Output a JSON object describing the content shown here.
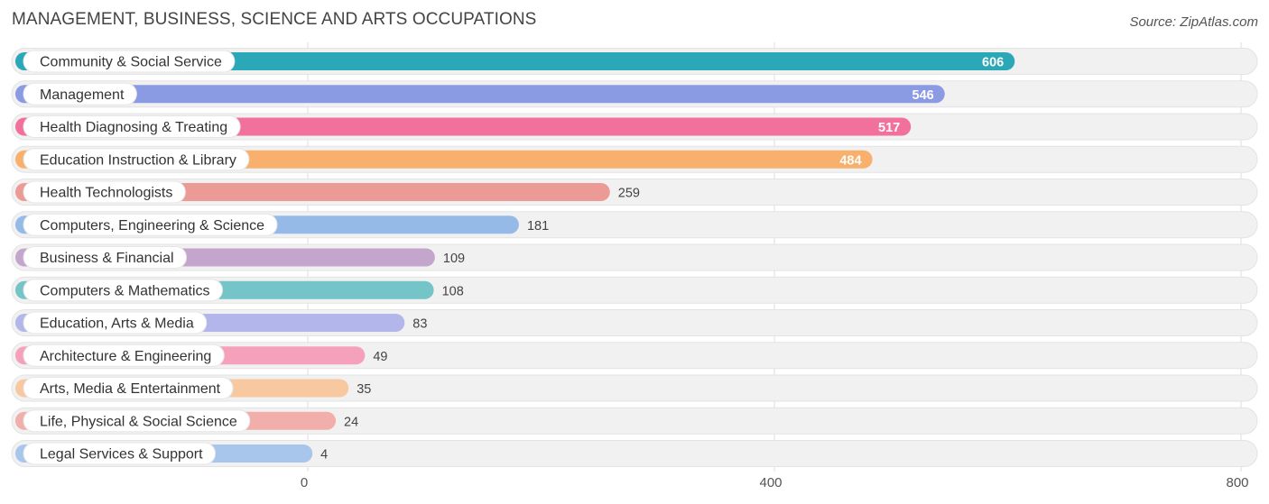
{
  "header": {
    "title": "MANAGEMENT, BUSINESS, SCIENCE AND ARTS OCCUPATIONS",
    "source": "Source: ZipAtlas.com"
  },
  "chart_data": {
    "type": "bar",
    "orientation": "horizontal",
    "title": "MANAGEMENT, BUSINESS, SCIENCE AND ARTS OCCUPATIONS",
    "xlim": [
      0,
      800
    ],
    "x_ticks": [
      "0",
      "400",
      "800"
    ],
    "grid": true,
    "categories": [
      "Community & Social Service",
      "Management",
      "Health Diagnosing & Treating",
      "Education Instruction & Library",
      "Health Technologists",
      "Computers, Engineering & Science",
      "Business & Financial",
      "Computers & Mathematics",
      "Education, Arts & Media",
      "Architecture & Engineering",
      "Arts, Media & Entertainment",
      "Life, Physical & Social Science",
      "Legal Services & Support"
    ],
    "values": [
      606,
      546,
      517,
      484,
      259,
      181,
      109,
      108,
      83,
      49,
      35,
      24,
      4
    ],
    "value_labels": [
      "606",
      "546",
      "517",
      "484",
      "259",
      "181",
      "109",
      "108",
      "83",
      "49",
      "35",
      "24",
      "4"
    ],
    "colors": [
      "#2ba8b8",
      "#8a9be3",
      "#f2709c",
      "#f8b06c",
      "#ec9a96",
      "#96bae8",
      "#c4a6cc",
      "#74c4c8",
      "#b2b6ea",
      "#f5a1bc",
      "#f8c8a0",
      "#f1aeaa",
      "#a8c6ec"
    ]
  }
}
